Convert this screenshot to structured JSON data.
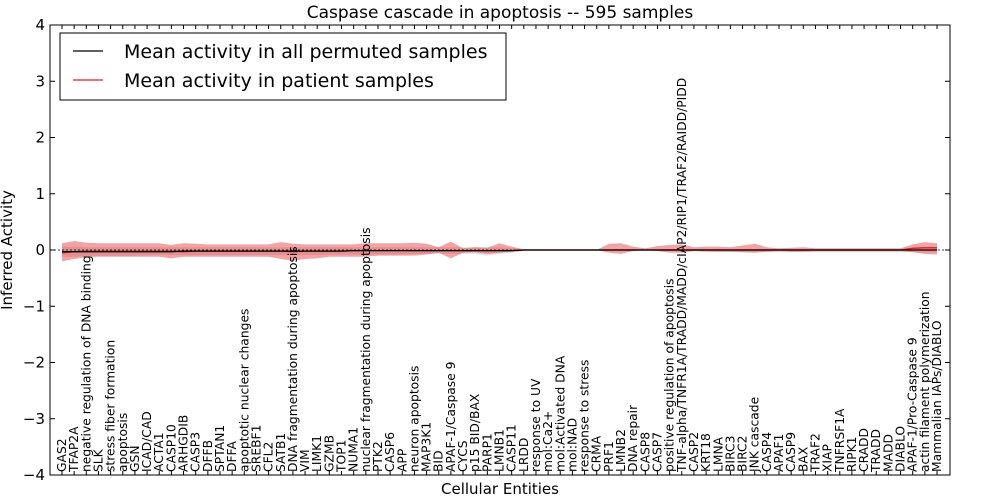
{
  "chart_data": {
    "type": "line",
    "title": "Caspase cascade in apoptosis -- 595 samples",
    "xlabel": "Cellular Entities",
    "ylabel": "Inferred Activity",
    "ylim": [
      -4,
      4
    ],
    "yticks": [
      "4",
      "3",
      "2",
      "1",
      "0",
      "−1",
      "−2",
      "−3",
      "−4"
    ],
    "legend": {
      "placement": "top-left",
      "entries": [
        {
          "label": "Mean activity in all permuted samples",
          "color": "#000000"
        },
        {
          "label": "Mean activity in patient samples",
          "color": "#e31a1c"
        }
      ]
    },
    "categories": [
      "GAS2",
      "TFAP2A",
      "negative regulation of DNA binding",
      "SLK",
      "stress fiber formation",
      "apoptosis",
      "GSN",
      "ICAD/CAD",
      "ACTA1",
      "CASP10",
      "ARHGDIB",
      "CASP3",
      "DFFB",
      "SPTAN1",
      "DFFA",
      "apoptotic nuclear changes",
      "SREBF1",
      "CFL2",
      "SATB1",
      "DNA fragmentation during apoptosis",
      "VIM",
      "LIMK1",
      "GZMB",
      "TOP1",
      "NUMA1",
      "nuclear fragmentation during apoptosis",
      "PTK2",
      "CASP6",
      "APP",
      "neuron apoptosis",
      "MAP3K1",
      "BID",
      "APAF-1/Caspase 9",
      "CYCS",
      "p15 BID/BAX",
      "PARP1",
      "LMNB1",
      "CASP11",
      "LRDD",
      "response to UV",
      "mol:Ca2+",
      "mol:Activated DNA",
      "mol:NAD",
      "response to stress",
      "CRMA",
      "PRF1",
      "LMNB2",
      "DNA repair",
      "CASP8",
      "CASP7",
      "positive regulation of apoptosis",
      "TNF-alpha/TNFR1A/TRADD/MADD/cIAP2/RIP1/TRAF2/RAIDD/PIDD",
      "CASP2",
      "KRT18",
      "LMNA",
      "BIRC3",
      "BIRC2",
      "JNK cascade",
      "CASP4",
      "APAF1",
      "CASP9",
      "BAX",
      "TRAF2",
      "XIAP",
      "TNFRSF1A",
      "RIPK1",
      "CRADD",
      "TRADD",
      "MADD",
      "DIABLO",
      "APAF-1/Pro-Caspase 9",
      "actin filament polymerization",
      "Mammalian IAPs/DIABLO"
    ],
    "series": [
      {
        "name": "Mean activity in all permuted samples",
        "color": "#000000",
        "values": [
          -0.03,
          -0.03,
          -0.03,
          -0.03,
          -0.03,
          -0.03,
          -0.03,
          -0.03,
          -0.03,
          -0.03,
          -0.02,
          -0.02,
          -0.02,
          -0.02,
          -0.02,
          -0.02,
          -0.02,
          -0.02,
          -0.02,
          -0.02,
          -0.02,
          -0.02,
          -0.02,
          -0.02,
          -0.01,
          -0.01,
          -0.01,
          -0.01,
          -0.01,
          -0.01,
          -0.01,
          -0.01,
          -0.01,
          -0.01,
          -0.01,
          -0.01,
          -0.01,
          -0.01,
          0,
          0,
          0,
          0,
          0,
          0,
          0,
          0,
          0,
          0,
          0,
          0,
          0,
          0,
          0,
          0,
          0,
          0,
          0,
          0,
          0,
          0,
          0,
          0,
          0,
          0,
          0,
          0,
          0,
          0,
          0,
          0,
          0,
          0,
          0
        ],
        "band_lower": [
          -0.12,
          -0.12,
          -0.1,
          -0.1,
          -0.1,
          -0.1,
          -0.1,
          -0.09,
          -0.09,
          -0.09,
          -0.09,
          -0.09,
          -0.09,
          -0.09,
          -0.09,
          -0.09,
          -0.09,
          -0.09,
          -0.09,
          -0.09,
          -0.09,
          -0.09,
          -0.08,
          -0.08,
          -0.08,
          -0.08,
          -0.08,
          -0.08,
          -0.08,
          -0.07,
          -0.07,
          -0.07,
          -0.07,
          -0.07,
          -0.07,
          -0.1,
          -0.07,
          -0.05,
          -0.02,
          -0.02,
          -0.02,
          -0.02,
          -0.02,
          -0.02,
          -0.02,
          -0.02,
          -0.02,
          -0.02,
          -0.02,
          -0.02,
          -0.02,
          -0.02,
          -0.02,
          -0.02,
          -0.03,
          -0.04,
          -0.04,
          -0.04,
          -0.04,
          -0.04,
          -0.04,
          -0.04,
          -0.04,
          -0.04,
          -0.04,
          -0.04,
          -0.04,
          -0.04,
          -0.04,
          -0.04,
          -0.04,
          -0.04,
          -0.04
        ],
        "band_upper": [
          0.06,
          0.06,
          0.05,
          0.05,
          0.05,
          0.05,
          0.05,
          0.05,
          0.05,
          0.05,
          0.05,
          0.05,
          0.05,
          0.05,
          0.05,
          0.05,
          0.05,
          0.05,
          0.05,
          0.05,
          0.05,
          0.05,
          0.05,
          0.05,
          0.05,
          0.05,
          0.05,
          0.05,
          0.05,
          0.05,
          0.05,
          0.05,
          0.05,
          0.05,
          0.05,
          0.05,
          0.05,
          0.03,
          0.02,
          0.02,
          0.02,
          0.02,
          0.02,
          0.02,
          0.02,
          0.02,
          0.02,
          0.02,
          0.02,
          0.02,
          0.02,
          0.02,
          0.02,
          0.02,
          0.02,
          0.02,
          0.02,
          0.02,
          0.02,
          0.02,
          0.02,
          0.02,
          0.02,
          0.02,
          0.02,
          0.02,
          0.02,
          0.02,
          0.02,
          0.02,
          0.02,
          0.02,
          0.02
        ]
      },
      {
        "name": "Mean activity in patient samples",
        "color": "#e31a1c",
        "values": [
          -0.05,
          -0.03,
          -0.02,
          -0.02,
          -0.02,
          -0.02,
          -0.02,
          -0.02,
          -0.02,
          -0.02,
          -0.03,
          -0.02,
          -0.02,
          -0.02,
          -0.02,
          -0.02,
          -0.02,
          -0.02,
          -0.02,
          -0.03,
          -0.02,
          -0.02,
          -0.02,
          -0.02,
          -0.01,
          -0.01,
          -0.01,
          -0.01,
          -0.01,
          -0.01,
          -0.01,
          -0.01,
          -0.01,
          -0.01,
          -0.01,
          -0.01,
          -0.01,
          -0.01,
          0,
          0,
          0,
          0,
          0,
          0,
          0,
          0,
          0,
          0,
          0,
          0,
          0,
          0,
          0,
          0,
          0,
          0,
          0,
          0,
          0,
          0,
          0,
          0,
          0,
          0,
          0,
          0,
          0,
          0,
          0,
          0,
          0.03,
          0.04,
          0.04
        ],
        "band_lower": [
          -0.2,
          -0.16,
          -0.13,
          -0.12,
          -0.12,
          -0.12,
          -0.12,
          -0.12,
          -0.12,
          -0.15,
          -0.12,
          -0.12,
          -0.12,
          -0.12,
          -0.12,
          -0.12,
          -0.12,
          -0.12,
          -0.16,
          -0.19,
          -0.16,
          -0.15,
          -0.12,
          -0.12,
          -0.12,
          -0.12,
          -0.1,
          -0.1,
          -0.1,
          -0.1,
          -0.08,
          -0.05,
          -0.15,
          -0.05,
          -0.04,
          -0.07,
          -0.05,
          -0.03,
          -0.01,
          0,
          0,
          0,
          0,
          0,
          0,
          -0.05,
          -0.07,
          -0.02,
          0,
          -0.02,
          -0.05,
          -0.05,
          -0.02,
          -0.03,
          -0.03,
          -0.03,
          -0.04,
          -0.05,
          -0.03,
          -0.02,
          -0.03,
          -0.03,
          -0.02,
          -0.02,
          -0.02,
          -0.02,
          -0.02,
          -0.02,
          -0.02,
          -0.02,
          -0.04,
          -0.07,
          -0.08
        ],
        "band_upper": [
          0.12,
          0.16,
          0.13,
          0.12,
          0.12,
          0.12,
          0.12,
          0.12,
          0.12,
          0.09,
          0.12,
          0.11,
          0.1,
          0.1,
          0.1,
          0.1,
          0.1,
          0.1,
          0.14,
          0.11,
          0.1,
          0.1,
          0.1,
          0.1,
          0.1,
          0.12,
          0.12,
          0.12,
          0.12,
          0.13,
          0.11,
          0.05,
          0.15,
          0.03,
          0.05,
          0.04,
          0.12,
          0.06,
          0.01,
          0,
          0,
          0,
          0,
          0,
          0,
          0.11,
          0.12,
          0.06,
          0.03,
          0.07,
          0.09,
          0.1,
          0.05,
          0.06,
          0.06,
          0.05,
          0.08,
          0.11,
          0.05,
          0.03,
          0.04,
          0.05,
          0.03,
          0.03,
          0.03,
          0.03,
          0.03,
          0.03,
          0.03,
          0.03,
          0.1,
          0.14,
          0.12
        ]
      }
    ]
  }
}
